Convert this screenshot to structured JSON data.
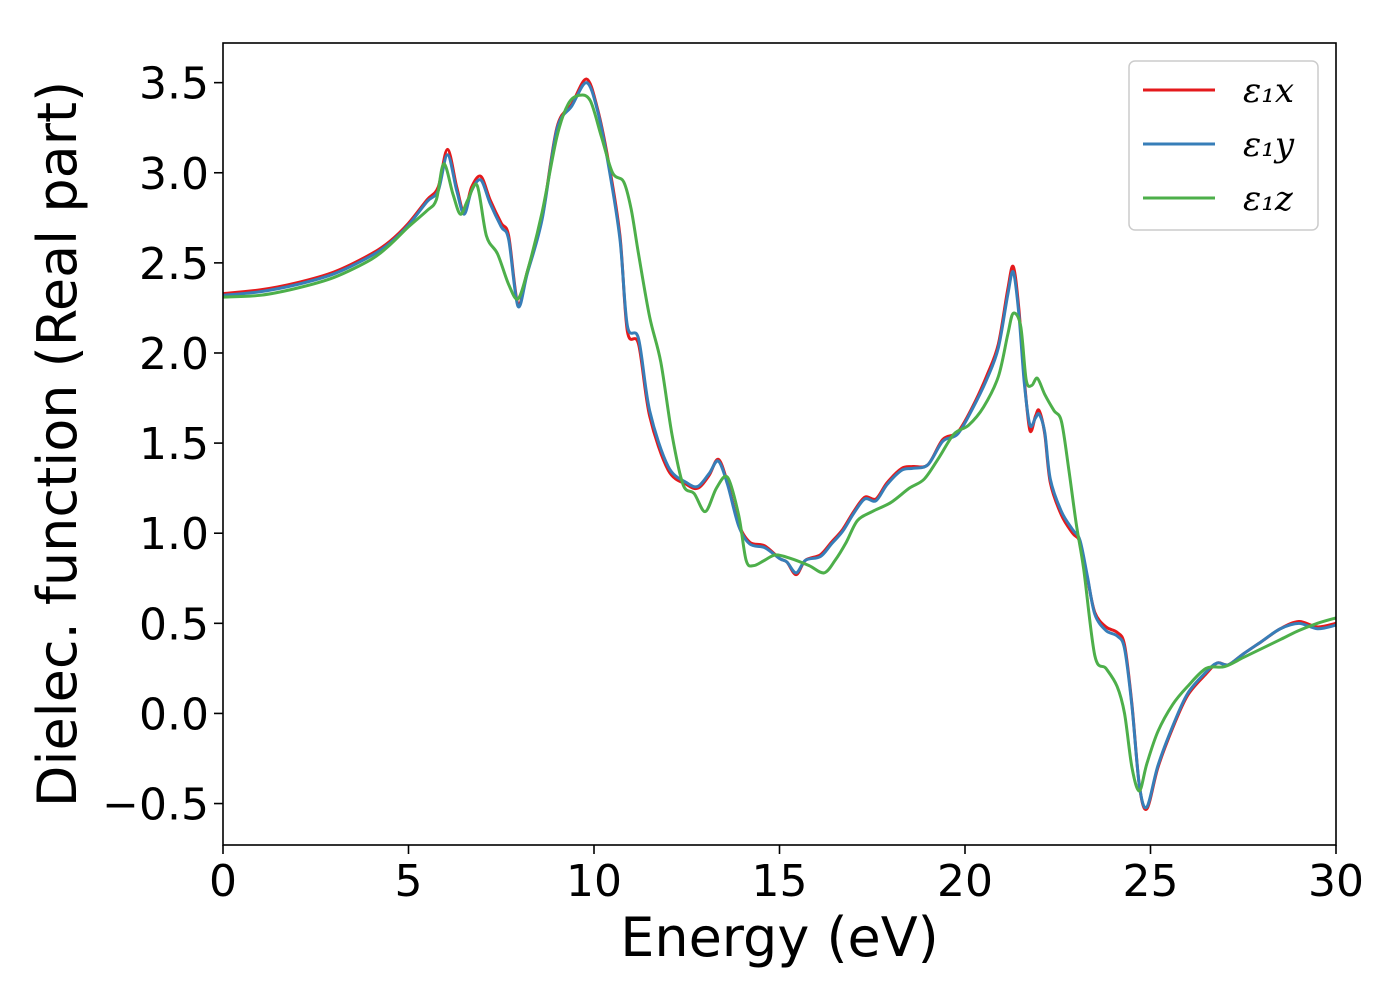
{
  "chart_data": {
    "type": "line",
    "xlabel": "Energy (eV)",
    "ylabel": "Dielec. function (Real part)",
    "xlim": [
      0,
      30
    ],
    "ylim": [
      -0.73,
      3.72
    ],
    "xticks": [
      0,
      5,
      10,
      15,
      20,
      25,
      30
    ],
    "xtick_labels": [
      "0",
      "5",
      "10",
      "15",
      "20",
      "25",
      "30"
    ],
    "yticks": [
      -0.5,
      0.0,
      0.5,
      1.0,
      1.5,
      2.0,
      2.5,
      3.0,
      3.5
    ],
    "ytick_labels": [
      "−0.5",
      "0.0",
      "0.5",
      "1.0",
      "1.5",
      "2.0",
      "2.5",
      "3.0",
      "3.5"
    ],
    "grid": false,
    "legend_position": "top-right",
    "series": [
      {
        "name": "ε₁x",
        "color": "#e41a1c",
        "x": [
          0,
          1,
          2,
          3,
          4,
          4.5,
          5,
          5.5,
          5.8,
          6.05,
          6.3,
          6.5,
          6.7,
          6.95,
          7.2,
          7.5,
          7.7,
          7.95,
          8.2,
          8.6,
          9.0,
          9.4,
          9.8,
          10.1,
          10.4,
          10.7,
          10.9,
          11.2,
          11.5,
          12.0,
          12.5,
          12.8,
          13.1,
          13.35,
          13.6,
          13.9,
          14.2,
          14.6,
          15.0,
          15.2,
          15.45,
          15.7,
          16.1,
          16.4,
          16.7,
          17.0,
          17.3,
          17.6,
          17.9,
          18.3,
          18.6,
          19.0,
          19.4,
          19.8,
          20.2,
          20.6,
          20.9,
          21.15,
          21.3,
          21.45,
          21.6,
          21.75,
          21.9,
          22.0,
          22.15,
          22.3,
          22.6,
          22.9,
          23.1,
          23.3,
          23.5,
          23.8,
          24.1,
          24.3,
          24.5,
          24.7,
          24.9,
          25.2,
          25.6,
          26.0,
          26.5,
          26.8,
          27.1,
          27.5,
          28.0,
          28.5,
          29.0,
          29.5,
          30.0
        ],
        "values": [
          2.33,
          2.35,
          2.39,
          2.45,
          2.55,
          2.62,
          2.72,
          2.85,
          2.92,
          3.13,
          2.92,
          2.78,
          2.92,
          2.98,
          2.85,
          2.72,
          2.65,
          2.27,
          2.45,
          2.75,
          3.25,
          3.38,
          3.52,
          3.35,
          3.05,
          2.65,
          2.12,
          2.05,
          1.65,
          1.35,
          1.27,
          1.25,
          1.32,
          1.41,
          1.28,
          1.05,
          0.95,
          0.93,
          0.86,
          0.84,
          0.77,
          0.85,
          0.88,
          0.95,
          1.02,
          1.12,
          1.2,
          1.19,
          1.28,
          1.36,
          1.37,
          1.38,
          1.52,
          1.56,
          1.7,
          1.88,
          2.05,
          2.35,
          2.48,
          2.25,
          1.85,
          1.57,
          1.65,
          1.68,
          1.55,
          1.28,
          1.1,
          1.0,
          0.95,
          0.75,
          0.56,
          0.48,
          0.45,
          0.38,
          0.05,
          -0.4,
          -0.53,
          -0.3,
          -0.08,
          0.1,
          0.22,
          0.28,
          0.27,
          0.33,
          0.4,
          0.47,
          0.51,
          0.48,
          0.5
        ]
      },
      {
        "name": "ε₁y",
        "color": "#377eb8",
        "x": [
          0,
          1,
          2,
          3,
          4,
          4.5,
          5,
          5.5,
          5.8,
          6.05,
          6.3,
          6.5,
          6.7,
          6.95,
          7.2,
          7.5,
          7.7,
          7.95,
          8.2,
          8.6,
          9.0,
          9.4,
          9.8,
          10.1,
          10.4,
          10.7,
          10.9,
          11.2,
          11.5,
          12.0,
          12.5,
          12.8,
          13.1,
          13.35,
          13.6,
          13.9,
          14.2,
          14.6,
          15.0,
          15.2,
          15.45,
          15.7,
          16.1,
          16.4,
          16.7,
          17.0,
          17.3,
          17.6,
          17.9,
          18.3,
          18.6,
          19.0,
          19.4,
          19.8,
          20.2,
          20.6,
          20.9,
          21.15,
          21.3,
          21.45,
          21.6,
          21.75,
          21.9,
          22.0,
          22.15,
          22.3,
          22.6,
          22.9,
          23.1,
          23.3,
          23.5,
          23.8,
          24.1,
          24.3,
          24.5,
          24.7,
          24.9,
          25.2,
          25.6,
          26.0,
          26.5,
          26.8,
          27.1,
          27.5,
          28.0,
          28.5,
          29.0,
          29.5,
          30.0
        ],
        "values": [
          2.32,
          2.34,
          2.38,
          2.44,
          2.54,
          2.61,
          2.71,
          2.84,
          2.9,
          3.1,
          2.9,
          2.77,
          2.9,
          2.96,
          2.83,
          2.7,
          2.63,
          2.26,
          2.44,
          2.74,
          3.24,
          3.37,
          3.5,
          3.34,
          3.03,
          2.63,
          2.15,
          2.08,
          1.68,
          1.37,
          1.28,
          1.26,
          1.33,
          1.4,
          1.27,
          1.04,
          0.94,
          0.92,
          0.86,
          0.84,
          0.78,
          0.85,
          0.87,
          0.94,
          1.01,
          1.11,
          1.19,
          1.18,
          1.27,
          1.35,
          1.36,
          1.38,
          1.51,
          1.55,
          1.69,
          1.86,
          2.03,
          2.32,
          2.45,
          2.22,
          1.83,
          1.6,
          1.64,
          1.66,
          1.56,
          1.3,
          1.12,
          1.02,
          0.96,
          0.76,
          0.55,
          0.46,
          0.43,
          0.36,
          0.04,
          -0.4,
          -0.52,
          -0.29,
          -0.07,
          0.11,
          0.23,
          0.28,
          0.27,
          0.33,
          0.4,
          0.47,
          0.5,
          0.47,
          0.49
        ]
      },
      {
        "name": "ε₁z",
        "color": "#4daf4a",
        "x": [
          0,
          1,
          2,
          3,
          4,
          4.5,
          5,
          5.5,
          5.75,
          5.95,
          6.2,
          6.4,
          6.6,
          6.85,
          7.1,
          7.4,
          7.7,
          7.95,
          8.2,
          8.6,
          9.0,
          9.3,
          9.6,
          9.9,
          10.2,
          10.5,
          10.8,
          11.0,
          11.2,
          11.5,
          11.8,
          12.1,
          12.4,
          12.7,
          13.0,
          13.3,
          13.6,
          13.9,
          14.1,
          14.3,
          14.6,
          14.9,
          15.3,
          15.8,
          16.2,
          16.5,
          16.8,
          17.1,
          17.5,
          18.0,
          18.5,
          18.9,
          19.3,
          19.7,
          20.1,
          20.5,
          20.9,
          21.15,
          21.3,
          21.5,
          21.65,
          21.8,
          21.95,
          22.15,
          22.4,
          22.6,
          22.8,
          23.0,
          23.2,
          23.5,
          23.8,
          24.1,
          24.3,
          24.5,
          24.7,
          24.9,
          25.2,
          25.6,
          26.0,
          26.5,
          27.0,
          27.5,
          28.0,
          28.5,
          29.0,
          29.5,
          30.0
        ],
        "values": [
          2.31,
          2.32,
          2.36,
          2.42,
          2.52,
          2.6,
          2.7,
          2.79,
          2.85,
          3.05,
          2.88,
          2.77,
          2.85,
          2.93,
          2.65,
          2.55,
          2.38,
          2.3,
          2.45,
          2.78,
          3.2,
          3.38,
          3.43,
          3.4,
          3.2,
          3.0,
          2.95,
          2.8,
          2.55,
          2.2,
          1.95,
          1.55,
          1.27,
          1.22,
          1.12,
          1.25,
          1.31,
          1.1,
          0.85,
          0.82,
          0.85,
          0.88,
          0.86,
          0.82,
          0.78,
          0.85,
          0.95,
          1.07,
          1.12,
          1.17,
          1.25,
          1.3,
          1.42,
          1.55,
          1.6,
          1.7,
          1.87,
          2.1,
          2.22,
          2.15,
          1.85,
          1.82,
          1.86,
          1.77,
          1.68,
          1.62,
          1.35,
          1.05,
          0.8,
          0.32,
          0.25,
          0.15,
          0.0,
          -0.3,
          -0.43,
          -0.28,
          -0.1,
          0.05,
          0.15,
          0.25,
          0.26,
          0.31,
          0.36,
          0.41,
          0.46,
          0.5,
          0.53
        ]
      }
    ]
  }
}
